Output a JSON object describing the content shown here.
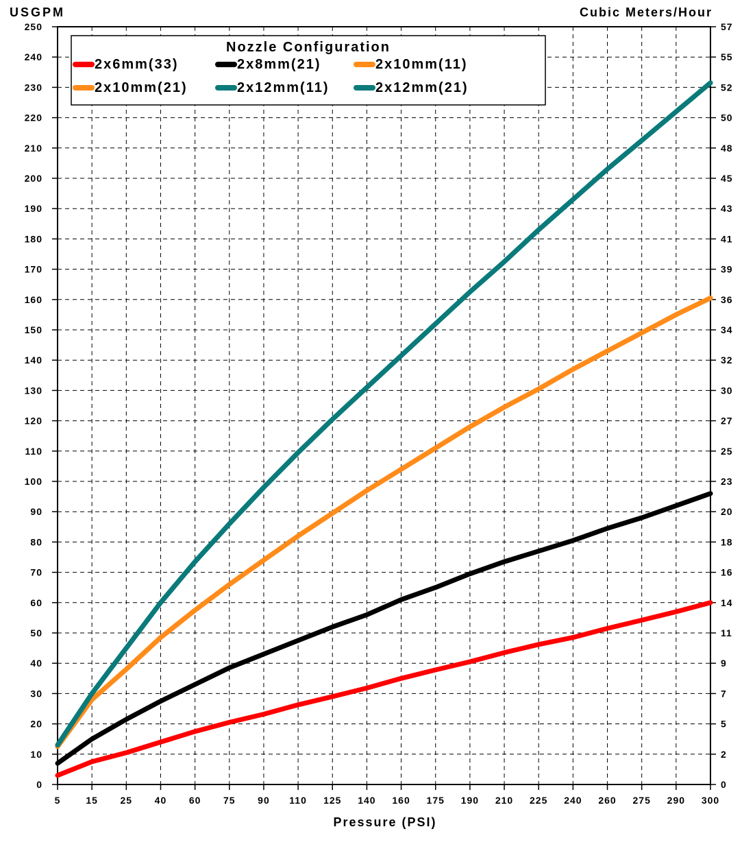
{
  "chart_data": {
    "type": "line",
    "ylabel_left": "USGPM",
    "ylabel_right": "Cubic Meters/Hour",
    "xlabel": "Pressure (PSI)",
    "legend_title": "Nozzle Configuration",
    "legend_placement": "top-left",
    "grid": true,
    "ylim": [
      0,
      250
    ],
    "y_ticks": [
      0,
      10,
      20,
      30,
      40,
      50,
      60,
      70,
      80,
      90,
      100,
      110,
      120,
      130,
      140,
      150,
      160,
      170,
      180,
      190,
      200,
      210,
      220,
      230,
      240,
      250
    ],
    "x_ticks": [
      "5",
      "15",
      "25",
      "40",
      "60",
      "75",
      "90",
      "110",
      "125",
      "140",
      "160",
      "175",
      "190",
      "210",
      "225",
      "240",
      "260",
      "275",
      "290",
      "300"
    ],
    "x_tick_values": [
      5,
      15,
      25,
      40,
      60,
      75,
      90,
      110,
      125,
      140,
      160,
      175,
      190,
      210,
      225,
      240,
      260,
      275,
      290,
      300
    ],
    "right_ticks": [
      "0",
      "2",
      "5",
      "7",
      "9",
      "11",
      "14",
      "16",
      "18",
      "20",
      "23",
      "25",
      "27",
      "30",
      "32",
      "34",
      "36",
      "39",
      "41",
      "43",
      "45",
      "48",
      "50",
      "52",
      "55",
      "57"
    ],
    "series": [
      {
        "name": "2x6mm(33)",
        "color": "#ff0000",
        "x": [
          5,
          15,
          25,
          40,
          60,
          75,
          90,
          110,
          125,
          140,
          160,
          175,
          190,
          210,
          225,
          240,
          260,
          275,
          290,
          300
        ],
        "values": [
          3,
          7.5,
          10.5,
          14,
          17.5,
          20.5,
          23.2,
          26.3,
          29,
          31.8,
          35,
          37.8,
          40.5,
          43.5,
          46.2,
          48.5,
          51.5,
          54.2,
          57,
          60
        ]
      },
      {
        "name": "2x8mm(21)",
        "color": "#000000",
        "x": [
          5,
          15,
          25,
          40,
          60,
          75,
          90,
          110,
          125,
          140,
          160,
          175,
          190,
          210,
          225,
          240,
          260,
          275,
          290,
          300
        ],
        "values": [
          7,
          15,
          21.5,
          27.5,
          33,
          38.5,
          43,
          47.5,
          52,
          56,
          61,
          65,
          69.5,
          73.5,
          77,
          80.5,
          84.5,
          88,
          92,
          96
        ]
      },
      {
        "name": "2x10mm(11)",
        "color": "#ff8c1a",
        "x": [
          5,
          15,
          25,
          40,
          60,
          75,
          90,
          110,
          125,
          140,
          160,
          175,
          190,
          210,
          225,
          240,
          260,
          275,
          290,
          300
        ],
        "values": [
          12.5,
          28,
          38,
          48.5,
          57.5,
          66,
          74,
          82,
          89.5,
          97,
          104,
          111,
          118,
          124.5,
          130.5,
          137,
          143,
          149,
          155,
          160.5
        ]
      },
      {
        "name": "2x10mm(21)",
        "color": "#ff8c1a",
        "x": [
          5,
          15,
          25,
          40,
          60,
          75,
          90,
          110,
          125,
          140,
          160,
          175,
          190,
          210,
          225,
          240,
          260,
          275,
          290,
          300
        ],
        "values": [
          12.5,
          28,
          38,
          48.5,
          57.5,
          66,
          74,
          82,
          89.5,
          97,
          104,
          111,
          118,
          124.5,
          130.5,
          137,
          143,
          149,
          155,
          160.5
        ]
      },
      {
        "name": "2x12mm(11)",
        "color": "#0a7a7a",
        "x": [
          5,
          15,
          25,
          40,
          60,
          75,
          90,
          110,
          125,
          140,
          160,
          175,
          190,
          210,
          225,
          240,
          260,
          275,
          290,
          300
        ],
        "values": [
          13,
          30,
          45,
          60,
          73.5,
          86,
          98,
          109.5,
          120.5,
          131,
          141.5,
          152,
          162.5,
          172.5,
          183,
          193,
          203,
          212.5,
          222,
          231.5
        ]
      },
      {
        "name": "2x12mm(21)",
        "color": "#0a7a7a",
        "x": [
          5,
          15,
          25,
          40,
          60,
          75,
          90,
          110,
          125,
          140,
          160,
          175,
          190,
          210,
          225,
          240,
          260,
          275,
          290,
          300
        ],
        "values": [
          13,
          30,
          45,
          60,
          73.5,
          86,
          98,
          109.5,
          120.5,
          131,
          141.5,
          152,
          162.5,
          172.5,
          183,
          193,
          203,
          212.5,
          222,
          231.5
        ]
      }
    ]
  }
}
